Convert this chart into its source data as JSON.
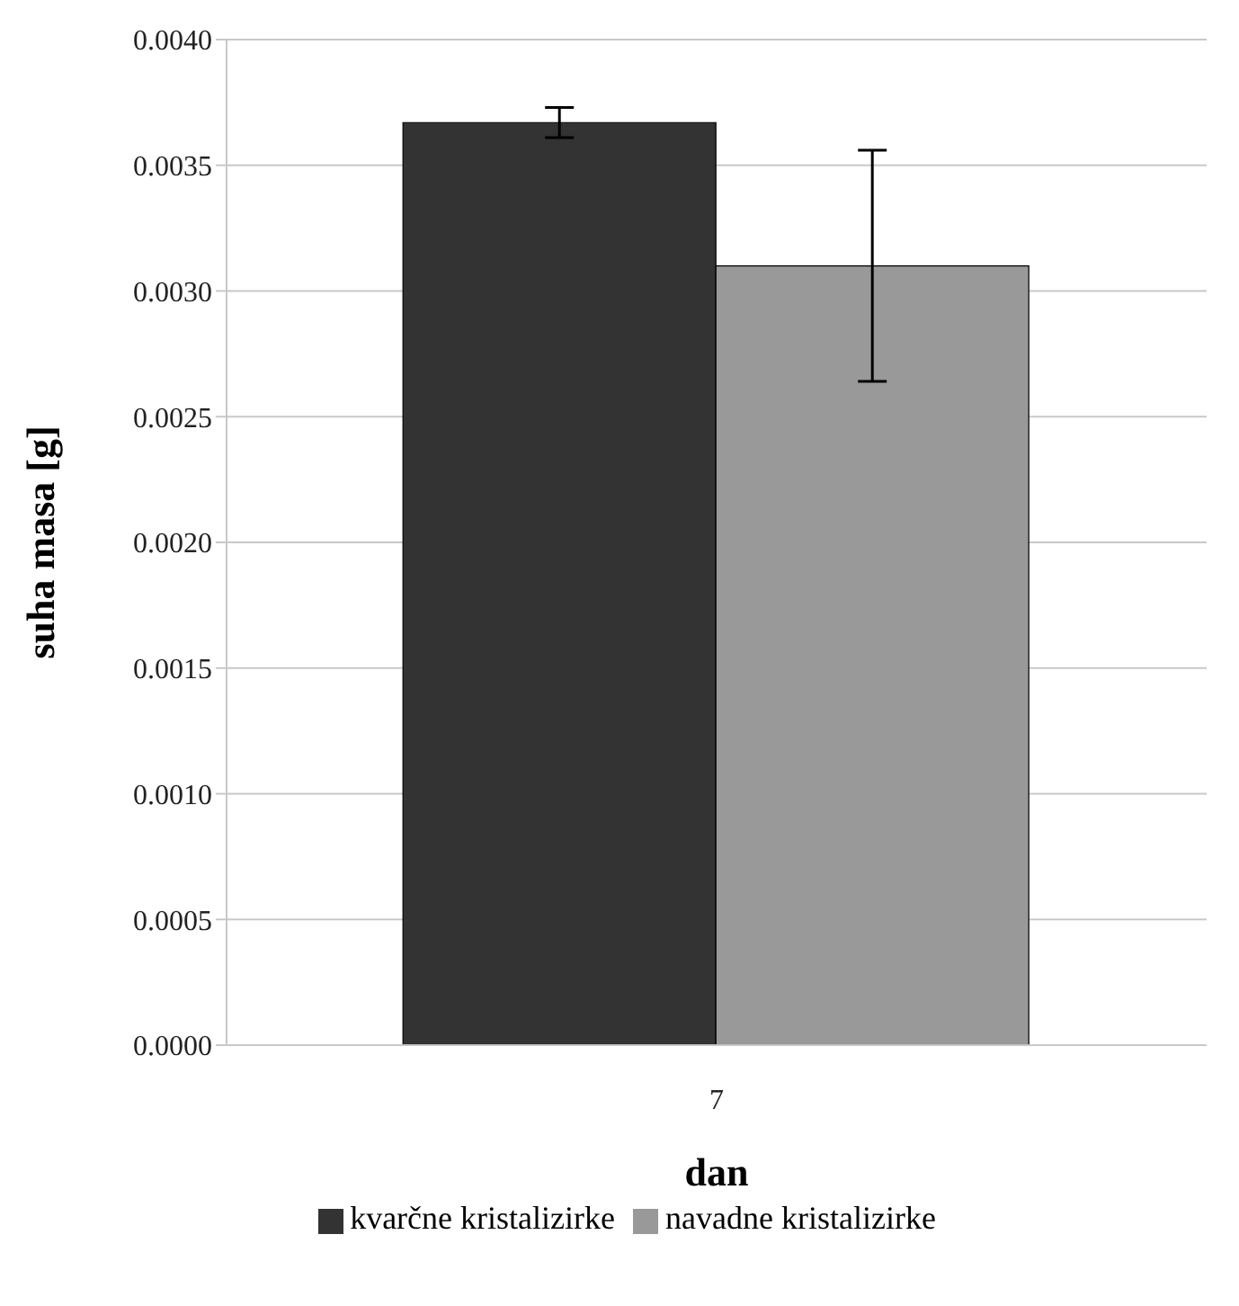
{
  "chart_data": {
    "type": "bar",
    "xlabel": "dan",
    "ylabel": "suha masa [g]",
    "categories": [
      "7"
    ],
    "series": [
      {
        "name": "kvarčne kristalizirke",
        "color": "#333333",
        "values": [
          0.00367
        ],
        "errors": [
          6e-05
        ]
      },
      {
        "name": "navadne kristalizirke",
        "color": "#999999",
        "values": [
          0.0031
        ],
        "errors": [
          0.00046
        ]
      }
    ],
    "ylim": [
      0,
      0.004
    ],
    "yticks": [
      {
        "value": 0,
        "label": "0.0000"
      },
      {
        "value": 0.0005,
        "label": "0.0005"
      },
      {
        "value": 0.001,
        "label": "0.0010"
      },
      {
        "value": 0.0015,
        "label": "0.0015"
      },
      {
        "value": 0.002,
        "label": "0.0020"
      },
      {
        "value": 0.0025,
        "label": "0.0025"
      },
      {
        "value": 0.003,
        "label": "0.0030"
      },
      {
        "value": 0.0035,
        "label": "0.0035"
      },
      {
        "value": 0.004,
        "label": "0.0040"
      }
    ],
    "grid": "y",
    "legend": "bottom"
  }
}
